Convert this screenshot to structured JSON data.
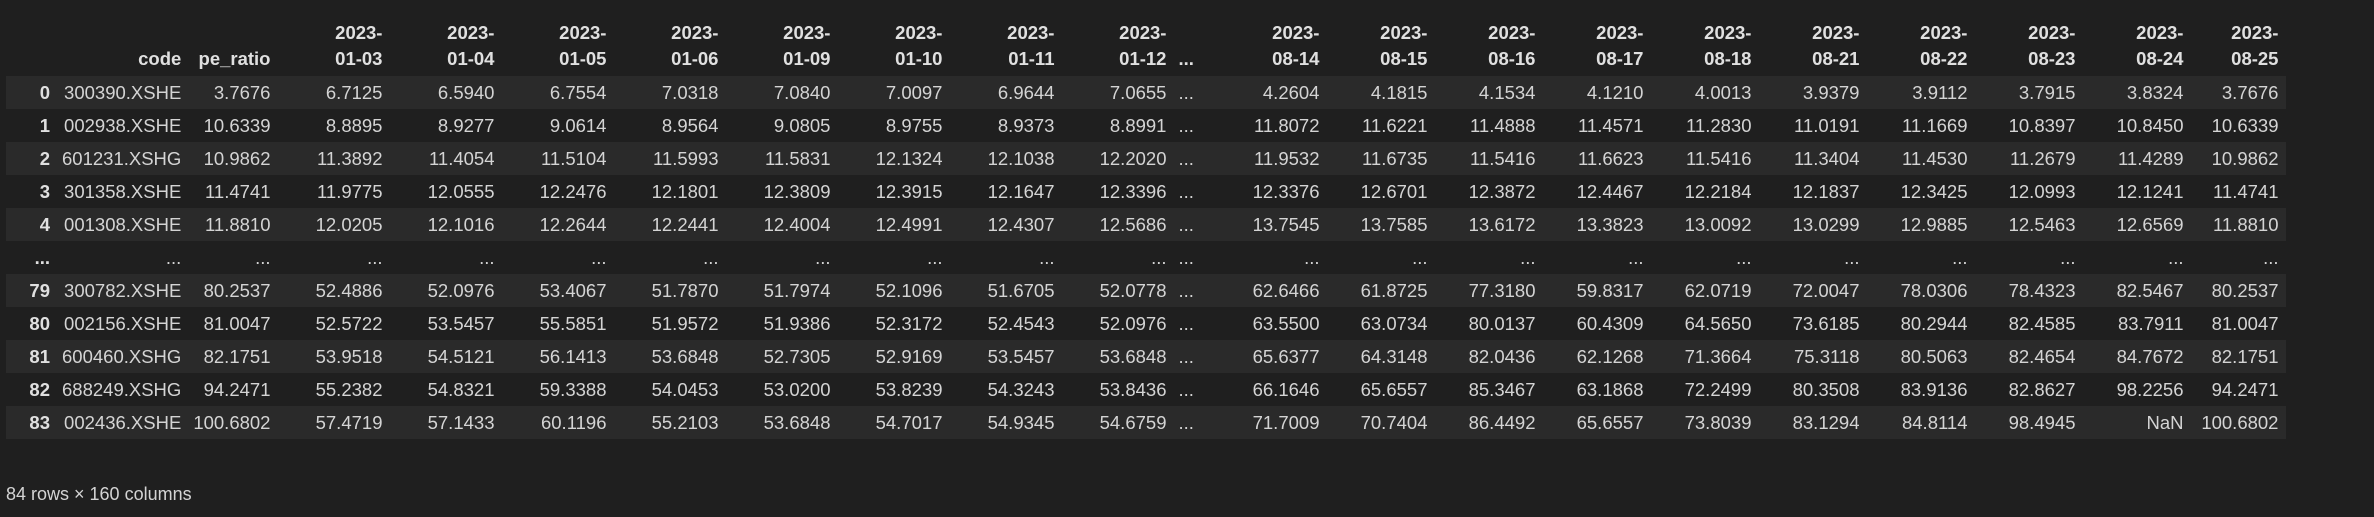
{
  "table": {
    "columns": [
      {
        "l1": "",
        "l2": "code"
      },
      {
        "l1": "",
        "l2": "pe_ratio"
      },
      {
        "l1": "2023-",
        "l2": "01-03"
      },
      {
        "l1": "2023-",
        "l2": "01-04"
      },
      {
        "l1": "2023-",
        "l2": "01-05"
      },
      {
        "l1": "2023-",
        "l2": "01-06"
      },
      {
        "l1": "2023-",
        "l2": "01-09"
      },
      {
        "l1": "2023-",
        "l2": "01-10"
      },
      {
        "l1": "2023-",
        "l2": "01-11"
      },
      {
        "l1": "2023-",
        "l2": "01-12"
      },
      {
        "l1": "",
        "l2": "..."
      },
      {
        "l1": "2023-",
        "l2": "08-14"
      },
      {
        "l1": "2023-",
        "l2": "08-15"
      },
      {
        "l1": "2023-",
        "l2": "08-16"
      },
      {
        "l1": "2023-",
        "l2": "08-17"
      },
      {
        "l1": "2023-",
        "l2": "08-18"
      },
      {
        "l1": "2023-",
        "l2": "08-21"
      },
      {
        "l1": "2023-",
        "l2": "08-22"
      },
      {
        "l1": "2023-",
        "l2": "08-23"
      },
      {
        "l1": "2023-",
        "l2": "08-24"
      },
      {
        "l1": "2023-",
        "l2": "08-25"
      }
    ],
    "rows": [
      {
        "index": "0",
        "cells": [
          "300390.XSHE",
          "3.7676",
          "6.7125",
          "6.5940",
          "6.7554",
          "7.0318",
          "7.0840",
          "7.0097",
          "6.9644",
          "7.0655",
          "...",
          "4.2604",
          "4.1815",
          "4.1534",
          "4.1210",
          "4.0013",
          "3.9379",
          "3.9112",
          "3.7915",
          "3.8324",
          "3.7676"
        ]
      },
      {
        "index": "1",
        "cells": [
          "002938.XSHE",
          "10.6339",
          "8.8895",
          "8.9277",
          "9.0614",
          "8.9564",
          "9.0805",
          "8.9755",
          "8.9373",
          "8.8991",
          "...",
          "11.8072",
          "11.6221",
          "11.4888",
          "11.4571",
          "11.2830",
          "11.0191",
          "11.1669",
          "10.8397",
          "10.8450",
          "10.6339"
        ]
      },
      {
        "index": "2",
        "cells": [
          "601231.XSHG",
          "10.9862",
          "11.3892",
          "11.4054",
          "11.5104",
          "11.5993",
          "11.5831",
          "12.1324",
          "12.1038",
          "12.2020",
          "...",
          "11.9532",
          "11.6735",
          "11.5416",
          "11.6623",
          "11.5416",
          "11.3404",
          "11.4530",
          "11.2679",
          "11.4289",
          "10.9862"
        ]
      },
      {
        "index": "3",
        "cells": [
          "301358.XSHE",
          "11.4741",
          "11.9775",
          "12.0555",
          "12.2476",
          "12.1801",
          "12.3809",
          "12.3915",
          "12.1647",
          "12.3396",
          "...",
          "12.3376",
          "12.6701",
          "12.3872",
          "12.4467",
          "12.2184",
          "12.1837",
          "12.3425",
          "12.0993",
          "12.1241",
          "11.4741"
        ]
      },
      {
        "index": "4",
        "cells": [
          "001308.XSHE",
          "11.8810",
          "12.0205",
          "12.1016",
          "12.2644",
          "12.2441",
          "12.4004",
          "12.4991",
          "12.4307",
          "12.5686",
          "...",
          "13.7545",
          "13.7585",
          "13.6172",
          "13.3823",
          "13.0092",
          "13.0299",
          "12.9885",
          "12.5463",
          "12.6569",
          "11.8810"
        ]
      },
      {
        "index": "...",
        "cells": [
          "...",
          "...",
          "...",
          "...",
          "...",
          "...",
          "...",
          "...",
          "...",
          "...",
          "...",
          "...",
          "...",
          "...",
          "...",
          "...",
          "...",
          "...",
          "...",
          "...",
          "..."
        ]
      },
      {
        "index": "79",
        "cells": [
          "300782.XSHE",
          "80.2537",
          "52.4886",
          "52.0976",
          "53.4067",
          "51.7870",
          "51.7974",
          "52.1096",
          "51.6705",
          "52.0778",
          "...",
          "62.6466",
          "61.8725",
          "77.3180",
          "59.8317",
          "62.0719",
          "72.0047",
          "78.0306",
          "78.4323",
          "82.5467",
          "80.2537"
        ]
      },
      {
        "index": "80",
        "cells": [
          "002156.XSHE",
          "81.0047",
          "52.5722",
          "53.5457",
          "55.5851",
          "51.9572",
          "51.9386",
          "52.3172",
          "52.4543",
          "52.0976",
          "...",
          "63.5500",
          "63.0734",
          "80.0137",
          "60.4309",
          "64.5650",
          "73.6185",
          "80.2944",
          "82.4585",
          "83.7911",
          "81.0047"
        ]
      },
      {
        "index": "81",
        "cells": [
          "600460.XSHG",
          "82.1751",
          "53.9518",
          "54.5121",
          "56.1413",
          "53.6848",
          "52.7305",
          "52.9169",
          "53.5457",
          "53.6848",
          "...",
          "65.6377",
          "64.3148",
          "82.0436",
          "62.1268",
          "71.3664",
          "75.3118",
          "80.5063",
          "82.4654",
          "84.7672",
          "82.1751"
        ]
      },
      {
        "index": "82",
        "cells": [
          "688249.XSHG",
          "94.2471",
          "55.2382",
          "54.8321",
          "59.3388",
          "54.0453",
          "53.0200",
          "53.8239",
          "54.3243",
          "53.8436",
          "...",
          "66.1646",
          "65.6557",
          "85.3467",
          "63.1868",
          "72.2499",
          "80.3508",
          "83.9136",
          "82.8627",
          "98.2256",
          "94.2471"
        ]
      },
      {
        "index": "83",
        "cells": [
          "002436.XSHE",
          "100.6802",
          "57.4719",
          "57.1433",
          "60.1196",
          "55.2103",
          "53.6848",
          "54.7017",
          "54.9345",
          "54.6759",
          "...",
          "71.7009",
          "70.7404",
          "86.4492",
          "65.6557",
          "73.8039",
          "83.1294",
          "84.8114",
          "98.4945",
          "NaN",
          "100.6802"
        ]
      }
    ]
  },
  "summary": "84 rows × 160 columns"
}
